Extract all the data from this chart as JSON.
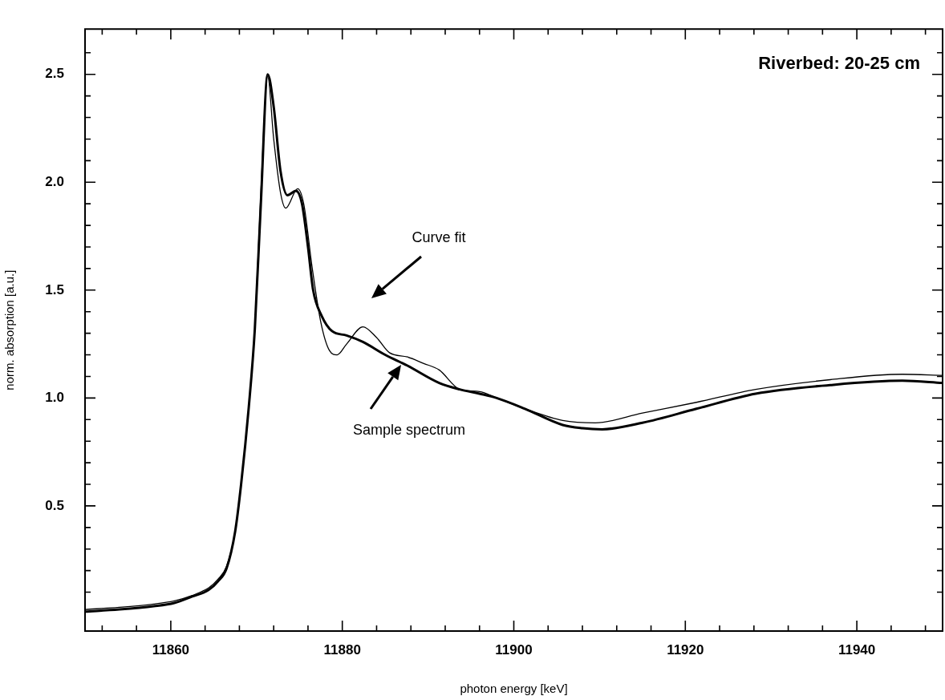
{
  "chart_data": {
    "type": "line",
    "title": "Riverbed: 20-25 cm",
    "xlabel": "photon energy [keV]",
    "ylabel": "norm. absorption [a.u.]",
    "xlim": [
      11850,
      11950
    ],
    "ylim": [
      -0.08,
      2.71
    ],
    "xticks": [
      {
        "value": 11852,
        "label": null
      },
      {
        "value": 11856,
        "label": null
      },
      11860,
      {
        "value": 11864,
        "label": null
      },
      {
        "value": 11868,
        "label": null
      },
      {
        "value": 11872,
        "label": null
      },
      {
        "value": 11876,
        "label": null
      },
      11880,
      {
        "value": 11884,
        "label": null
      },
      {
        "value": 11888,
        "label": null
      },
      {
        "value": 11892,
        "label": null
      },
      {
        "value": 11896,
        "label": null
      },
      11900,
      {
        "value": 11904,
        "label": null
      },
      {
        "value": 11908,
        "label": null
      },
      {
        "value": 11912,
        "label": null
      },
      {
        "value": 11916,
        "label": null
      },
      11920,
      {
        "value": 11924,
        "label": null
      },
      {
        "value": 11928,
        "label": null
      },
      {
        "value": 11932,
        "label": null
      },
      {
        "value": 11936,
        "label": null
      },
      11940,
      {
        "value": 11944,
        "label": null
      },
      {
        "value": 11948,
        "label": null
      }
    ],
    "yticks": [
      {
        "value": 0.1,
        "label": null
      },
      {
        "value": 0.2,
        "label": null
      },
      {
        "value": 0.3,
        "label": null
      },
      {
        "value": 0.4,
        "label": null
      },
      0.5,
      {
        "value": 0.6,
        "label": null
      },
      {
        "value": 0.7,
        "label": null
      },
      {
        "value": 0.8,
        "label": null
      },
      {
        "value": 0.9,
        "label": null
      },
      {
        "value": 1,
        "label": "1.0"
      },
      {
        "value": 1.1,
        "label": null
      },
      {
        "value": 1.2,
        "label": null
      },
      {
        "value": 1.3,
        "label": null
      },
      {
        "value": 1.4,
        "label": null
      },
      1.5,
      {
        "value": 1.6,
        "label": null
      },
      {
        "value": 1.7,
        "label": null
      },
      {
        "value": 1.8,
        "label": null
      },
      {
        "value": 1.9,
        "label": null
      },
      {
        "value": 2,
        "label": "2.0"
      },
      {
        "value": 2.1,
        "label": null
      },
      {
        "value": 2.2,
        "label": null
      },
      {
        "value": 2.3,
        "label": null
      },
      {
        "value": 2.4,
        "label": null
      },
      2.5,
      {
        "value": 2.6,
        "label": null
      }
    ],
    "annotations": [
      "Curve fit",
      "Sample spectrum"
    ],
    "series": [
      {
        "color": "#000000",
        "x": [
          11850,
          11854,
          11858,
          11860.4,
          11862.5,
          11864.4,
          11865.5,
          11866.5,
          11867.5,
          11868.2,
          11869.1,
          11869.8,
          11870.5,
          11871.3,
          11872,
          11872.8,
          11873.6,
          11874.6,
          11875.3,
          11876,
          11876.6,
          11877.6,
          11878.8,
          11880.5,
          11882.4,
          11885,
          11887.6,
          11891.3,
          11893.7,
          11896,
          11898,
          11901.3,
          11905.7,
          11908,
          11910.3,
          11915,
          11921.3,
          11928.2,
          11936.9,
          11945.3,
          11950
        ],
        "values": [
          0.01,
          0.02,
          0.035,
          0.05,
          0.08,
          0.11,
          0.15,
          0.21,
          0.38,
          0.6,
          0.96,
          1.32,
          1.9,
          2.5,
          2.35,
          2.05,
          1.94,
          1.96,
          1.9,
          1.7,
          1.5,
          1.38,
          1.31,
          1.29,
          1.26,
          1.2,
          1.15,
          1.07,
          1.04,
          1.02,
          1.0,
          0.95,
          0.875,
          0.86,
          0.855,
          0.885,
          0.95,
          1.02,
          1.06,
          1.08,
          1.07
        ]
      },
      {
        "color": "#000000",
        "x": [
          11850,
          11854,
          11858,
          11860.4,
          11862.5,
          11864.4,
          11865.5,
          11866.5,
          11867.5,
          11868.2,
          11869.1,
          11869.8,
          11870.5,
          11871.3,
          11872,
          11872.8,
          11873.4,
          11874.8,
          11875.5,
          11876.5,
          11877.5,
          11878.5,
          11879.4,
          11880.5,
          11882.4,
          11884,
          11885.5,
          11887.6,
          11889.5,
          11891.3,
          11893.7,
          11896,
          11898,
          11901.3,
          11905.7,
          11909.5,
          11915,
          11921.3,
          11928.2,
          11936.9,
          11945.3,
          11950
        ],
        "values": [
          0.02,
          0.03,
          0.045,
          0.06,
          0.085,
          0.12,
          0.16,
          0.22,
          0.38,
          0.6,
          0.96,
          1.32,
          1.95,
          2.49,
          2.2,
          1.95,
          1.88,
          1.97,
          1.9,
          1.6,
          1.35,
          1.22,
          1.2,
          1.25,
          1.33,
          1.28,
          1.21,
          1.19,
          1.16,
          1.13,
          1.04,
          1.03,
          1.0,
          0.95,
          0.896,
          0.885,
          0.93,
          0.98,
          1.04,
          1.085,
          1.11,
          1.105
        ]
      }
    ]
  }
}
